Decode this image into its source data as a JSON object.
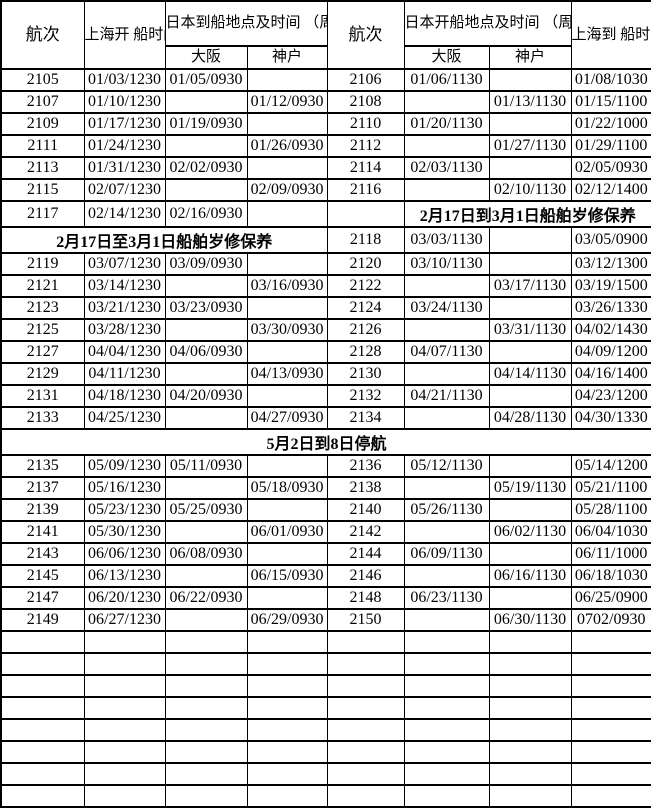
{
  "table": {
    "header": {
      "voyage": "航次",
      "shanghai_depart": "上海开\n船时间\n（周六）",
      "japan_arrive": "日本到船地点及时间\n（周一）",
      "japan_depart": "日本开船地点及时间\n（周二）",
      "shanghai_arrive": "上海到\n船时间\n（周四）",
      "osaka": "大阪",
      "kobe": "神户"
    },
    "notices": {
      "maintenance_right": "2月17日到3月1日船舶岁修保养",
      "maintenance_left": "2月17日至3月1日船舶岁修保养",
      "suspension": "5月2日到8日停航"
    },
    "rows": [
      {
        "cells": [
          "2105",
          "01/03/1230",
          "01/05/0930",
          "",
          "2106",
          "01/06/1130",
          "",
          "01/08/1030"
        ]
      },
      {
        "cells": [
          "2107",
          "01/10/1230",
          "",
          "01/12/0930",
          "2108",
          "",
          "01/13/1130",
          "01/15/1100"
        ]
      },
      {
        "cells": [
          "2109",
          "01/17/1230",
          "01/19/0930",
          "",
          "2110",
          "01/20/1130",
          "",
          "01/22/1000"
        ]
      },
      {
        "cells": [
          "2111",
          "01/24/1230",
          "",
          "01/26/0930",
          "2112",
          "",
          "01/27/1130",
          "01/29/1100"
        ]
      },
      {
        "cells": [
          "2113",
          "01/31/1230",
          "02/02/0930",
          "",
          "2114",
          "02/03/1130",
          "",
          "02/05/0930"
        ]
      },
      {
        "cells": [
          "2115",
          "02/07/1230",
          "",
          "02/09/0930",
          "2116",
          "",
          "02/10/1130",
          "02/12/1400"
        ]
      },
      {
        "cells": [
          "2117",
          "02/14/1230",
          "02/16/0930",
          "",
          "",
          {
            "text": "2月17日到3月1日船舶岁修保养",
            "colspan": 3,
            "bold": true
          }
        ]
      },
      {
        "cells": [
          {
            "text": "2月17日至3月1日船舶岁修保养",
            "colspan": 4,
            "bold": true
          },
          "2118",
          "03/03/1130",
          "",
          "03/05/0900"
        ]
      },
      {
        "cells": [
          "2119",
          "03/07/1230",
          "03/09/0930",
          "",
          "2120",
          "03/10/1130",
          "",
          "03/12/1300"
        ]
      },
      {
        "cells": [
          "2121",
          "03/14/1230",
          "",
          "03/16/0930",
          "2122",
          "",
          "03/17/1130",
          "03/19/1500"
        ]
      },
      {
        "cells": [
          "2123",
          "03/21/1230",
          "03/23/0930",
          "",
          "2124",
          "03/24/1130",
          "",
          "03/26/1330"
        ]
      },
      {
        "cells": [
          "2125",
          "03/28/1230",
          "",
          "03/30/0930",
          "2126",
          "",
          "03/31/1130",
          "04/02/1430"
        ]
      },
      {
        "cells": [
          "2127",
          "04/04/1230",
          "04/06/0930",
          "",
          "2128",
          "04/07/1130",
          "",
          "04/09/1200"
        ]
      },
      {
        "cells": [
          "2129",
          "04/11/1230",
          "",
          "04/13/0930",
          "2130",
          "",
          "04/14/1130",
          "04/16/1400"
        ]
      },
      {
        "cells": [
          "2131",
          "04/18/1230",
          "04/20/0930",
          "",
          "2132",
          "04/21/1130",
          "",
          "04/23/1200"
        ]
      },
      {
        "cells": [
          "2133",
          "04/25/1230",
          "",
          "04/27/0930",
          "2134",
          "",
          "04/28/1130",
          "04/30/1330"
        ]
      },
      {
        "cells": [
          {
            "text": "5月2日到8日停航",
            "colspan": 8,
            "bold": true
          }
        ]
      },
      {
        "cells": [
          "2135",
          "05/09/1230",
          "05/11/0930",
          "",
          "2136",
          "05/12/1130",
          "",
          "05/14/1200"
        ]
      },
      {
        "cells": [
          "2137",
          "05/16/1230",
          "",
          "05/18/0930",
          "2138",
          "",
          "05/19/1130",
          "05/21/1100"
        ]
      },
      {
        "cells": [
          "2139",
          "05/23/1230",
          "05/25/0930",
          "",
          "2140",
          "05/26/1130",
          "",
          "05/28/1100"
        ]
      },
      {
        "cells": [
          "2141",
          "05/30/1230",
          "",
          "06/01/0930",
          "2142",
          "",
          "06/02/1130",
          "06/04/1030"
        ]
      },
      {
        "cells": [
          "2143",
          "06/06/1230",
          "06/08/0930",
          "",
          "2144",
          "06/09/1130",
          "",
          "06/11/1000"
        ]
      },
      {
        "cells": [
          "2145",
          "06/13/1230",
          "",
          "06/15/0930",
          "2146",
          "",
          "06/16/1130",
          "06/18/1030"
        ]
      },
      {
        "cells": [
          "2147",
          "06/20/1230",
          "06/22/0930",
          "",
          "2148",
          "06/23/1130",
          "",
          "06/25/0900"
        ]
      },
      {
        "cells": [
          "2149",
          "06/27/1230",
          "",
          "06/29/0930",
          "2150",
          "",
          "06/30/1130",
          "0702/0930"
        ]
      },
      {
        "cells": [
          "",
          "",
          "",
          "",
          "",
          "",
          "",
          ""
        ]
      },
      {
        "cells": [
          "",
          "",
          "",
          "",
          "",
          "",
          "",
          ""
        ]
      },
      {
        "cells": [
          "",
          "",
          "",
          "",
          "",
          "",
          "",
          ""
        ]
      },
      {
        "cells": [
          "",
          "",
          "",
          "",
          "",
          "",
          "",
          ""
        ]
      },
      {
        "cells": [
          "",
          "",
          "",
          "",
          "",
          "",
          "",
          ""
        ]
      },
      {
        "cells": [
          "",
          "",
          "",
          "",
          "",
          "",
          "",
          ""
        ]
      },
      {
        "cells": [
          "",
          "",
          "",
          "",
          "",
          "",
          "",
          ""
        ]
      },
      {
        "cells": [
          "",
          "",
          "",
          "",
          "",
          "",
          "",
          ""
        ]
      }
    ]
  }
}
